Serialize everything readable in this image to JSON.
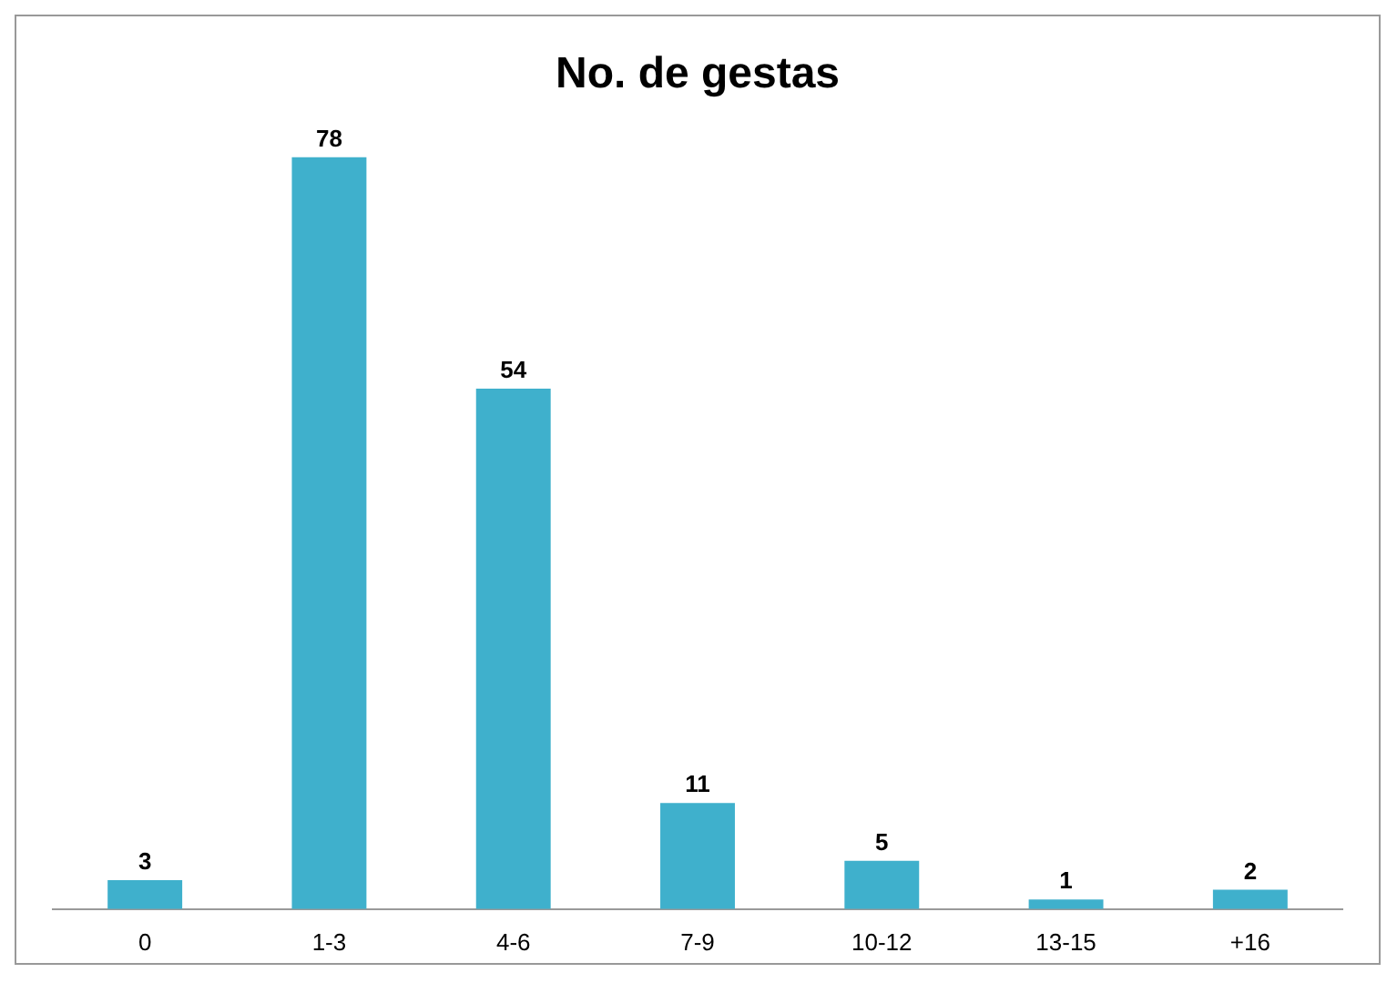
{
  "chart_data": {
    "type": "bar",
    "title": "No. de gestas",
    "categories": [
      "0",
      "1-3",
      "4-6",
      "7-9",
      "10-12",
      "13-15",
      "+16"
    ],
    "values": [
      3,
      78,
      54,
      11,
      5,
      1,
      2
    ],
    "color": "#3fb0cc",
    "data_labels": true,
    "grid": false,
    "legend": false
  }
}
